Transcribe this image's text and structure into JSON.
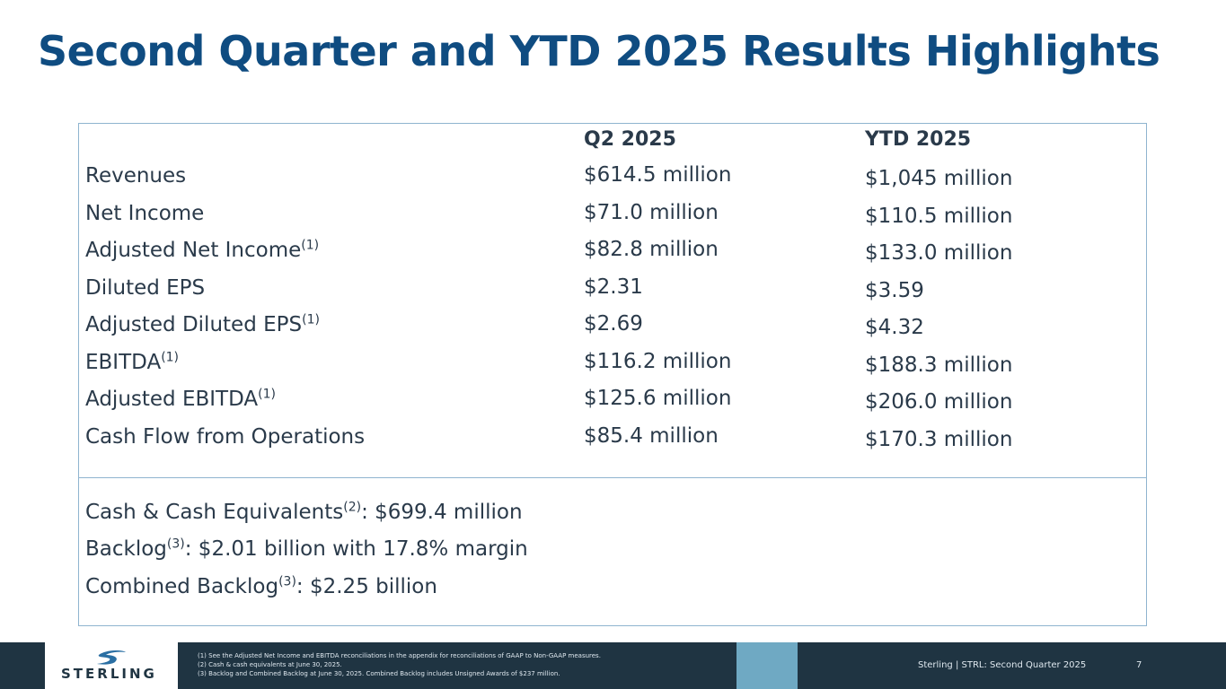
{
  "title": "Second Quarter and YTD 2025 Results Highlights",
  "columns": {
    "q2": "Q2 2025",
    "ytd": "YTD 2025"
  },
  "rows": [
    {
      "label": "Revenues",
      "sup": "",
      "q2": "$614.5 million",
      "ytd": "$1,045 million"
    },
    {
      "label": "Net Income",
      "sup": "",
      "q2": "$71.0 million",
      "ytd": "$110.5 million"
    },
    {
      "label": "Adjusted Net Income",
      "sup": "(1)",
      "q2": "$82.8 million",
      "ytd": "$133.0 million"
    },
    {
      "label": "Diluted EPS",
      "sup": "",
      "q2": "$2.31",
      "ytd": "$3.59"
    },
    {
      "label": "Adjusted Diluted EPS",
      "sup": "(1)",
      "q2": "$2.69",
      "ytd": "$4.32"
    },
    {
      "label": "EBITDA",
      "sup": "(1)",
      "q2": "$116.2 million",
      "ytd": "$188.3 million"
    },
    {
      "label": "Adjusted EBITDA",
      "sup": "(1)",
      "q2": "$125.6 million",
      "ytd": "$206.0 million"
    },
    {
      "label": "Cash Flow from Operations",
      "sup": "",
      "q2": "$85.4 million",
      "ytd": "$170.3 million"
    }
  ],
  "summary": [
    {
      "label": "Cash & Cash Equivalents",
      "sup": "(2)",
      "value": ": $699.4 million"
    },
    {
      "label": "Backlog",
      "sup": "(3)",
      "value": ":  $2.01 billion  with 17.8% margin"
    },
    {
      "label": "Combined Backlog",
      "sup": "(3)",
      "value": ": $2.25 billion"
    }
  ],
  "footer": {
    "logo_text": "STERLING",
    "notes": [
      "(1) See the Adjusted Net Income and EBITDA reconciliations in the appendix for reconciliations of GAAP to Non-GAAP measures.",
      "(2) Cash  & cash equivalents at June 30, 2025.",
      "(3) Backlog and Combined Backlog at June 30, 2025. Combined Backlog includes Unsigned Awards of $237 million."
    ],
    "company_line": "Sterling | STRL:  Second Quarter  2025",
    "page_number": "7"
  },
  "colors": {
    "title": "#0f4c81",
    "footer_bg": "#1f3442",
    "footer_accent": "#6fa9c3",
    "box_border": "#8fb4cf"
  },
  "icons": [
    "sterling-swoosh-logo-icon"
  ]
}
